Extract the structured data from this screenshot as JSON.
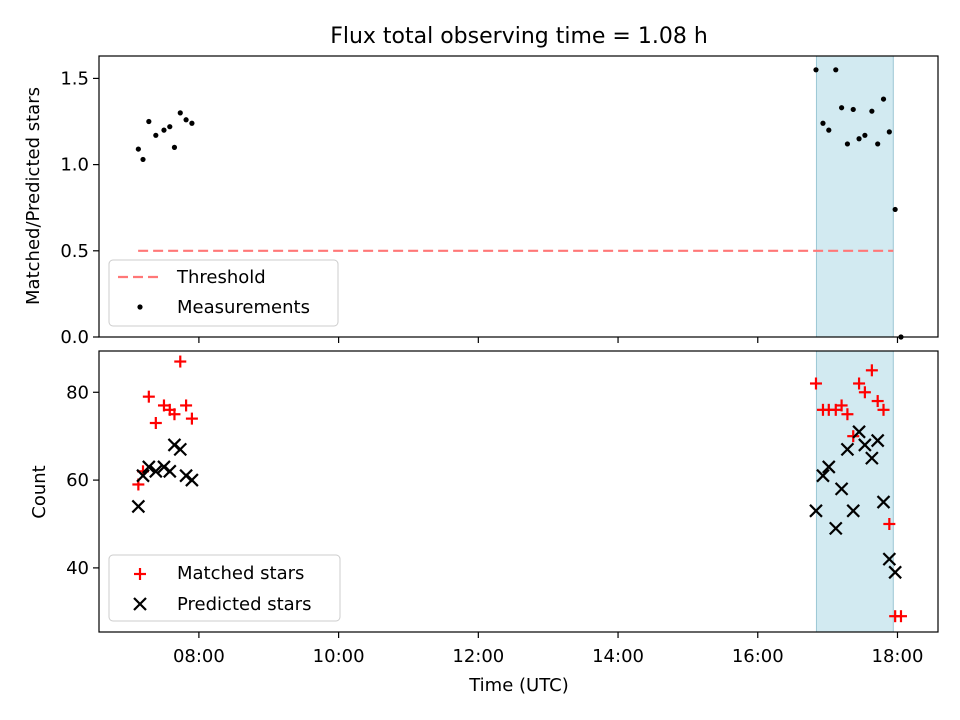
{
  "chart_data": [
    {
      "type": "scatter",
      "title": "Flux total observing time = 1.08 h",
      "xlabel": "",
      "ylabel": "Matched/Predicted stars",
      "xlim": [
        6.57,
        18.58
      ],
      "ylim": [
        0.0,
        1.63
      ],
      "y_ticks": [
        0.0,
        0.5,
        1.0,
        1.5
      ],
      "y_tick_labels": [
        "0.0",
        "0.5",
        "1.0",
        "1.5"
      ],
      "shaded_region": {
        "x_start": 16.84,
        "x_end": 17.94,
        "color": "#add8e6"
      },
      "threshold": {
        "name": "Threshold",
        "y": 0.5,
        "x_start": 7.13,
        "x_end": 17.94,
        "color": "#ff0000"
      },
      "series": [
        {
          "name": "Measurements",
          "marker": "dot",
          "color": "#000000",
          "points": [
            [
              "07:08",
              1.09
            ],
            [
              "07:12",
              1.03
            ],
            [
              "07:17",
              1.25
            ],
            [
              "07:23",
              1.17
            ],
            [
              "07:30",
              1.2
            ],
            [
              "07:35",
              1.22
            ],
            [
              "07:39",
              1.1
            ],
            [
              "07:44",
              1.3
            ],
            [
              "07:49",
              1.26
            ],
            [
              "07:54",
              1.24
            ],
            [
              "16:50",
              1.55
            ],
            [
              "16:56",
              1.24
            ],
            [
              "17:01",
              1.2
            ],
            [
              "17:07",
              1.55
            ],
            [
              "17:12",
              1.33
            ],
            [
              "17:17",
              1.12
            ],
            [
              "17:22",
              1.32
            ],
            [
              "17:27",
              1.15
            ],
            [
              "17:32",
              1.17
            ],
            [
              "17:38",
              1.31
            ],
            [
              "17:43",
              1.12
            ],
            [
              "17:48",
              1.38
            ],
            [
              "17:53",
              1.19
            ],
            [
              "17:58",
              0.74
            ],
            [
              "18:03",
              0.0
            ]
          ]
        }
      ],
      "legend": {
        "position": "lower-left",
        "entries": [
          "Threshold",
          "Measurements"
        ]
      }
    },
    {
      "type": "scatter",
      "title": "",
      "xlabel": "Time (UTC)",
      "ylabel": "Count",
      "xlim": [
        6.57,
        18.58
      ],
      "ylim": [
        25.4,
        89.4
      ],
      "x_ticks": [
        8,
        10,
        12,
        14,
        16,
        18
      ],
      "x_tick_labels": [
        "08:00",
        "10:00",
        "12:00",
        "14:00",
        "16:00",
        "18:00"
      ],
      "y_ticks": [
        40,
        60,
        80
      ],
      "y_tick_labels": [
        "40",
        "60",
        "80"
      ],
      "shaded_region": {
        "x_start": 16.84,
        "x_end": 17.94,
        "color": "#add8e6"
      },
      "series": [
        {
          "name": "Matched stars",
          "marker": "plus",
          "color": "#ff0000",
          "points": [
            [
              "07:08",
              59
            ],
            [
              "07:12",
              62
            ],
            [
              "07:17",
              79
            ],
            [
              "07:23",
              73
            ],
            [
              "07:30",
              77
            ],
            [
              "07:35",
              76
            ],
            [
              "07:39",
              75
            ],
            [
              "07:44",
              87
            ],
            [
              "07:49",
              77
            ],
            [
              "07:54",
              74
            ],
            [
              "16:50",
              82
            ],
            [
              "16:56",
              76
            ],
            [
              "17:01",
              76
            ],
            [
              "17:07",
              76
            ],
            [
              "17:12",
              77
            ],
            [
              "17:17",
              75
            ],
            [
              "17:22",
              70
            ],
            [
              "17:27",
              82
            ],
            [
              "17:32",
              80
            ],
            [
              "17:38",
              85
            ],
            [
              "17:43",
              78
            ],
            [
              "17:48",
              76
            ],
            [
              "17:53",
              50
            ],
            [
              "17:58",
              29
            ],
            [
              "18:03",
              29
            ]
          ]
        },
        {
          "name": "Predicted stars",
          "marker": "x",
          "color": "#000000",
          "points": [
            [
              "07:08",
              54
            ],
            [
              "07:12",
              61
            ],
            [
              "07:17",
              63
            ],
            [
              "07:23",
              62
            ],
            [
              "07:30",
              63
            ],
            [
              "07:35",
              62
            ],
            [
              "07:39",
              68
            ],
            [
              "07:44",
              67
            ],
            [
              "07:49",
              61
            ],
            [
              "07:54",
              60
            ],
            [
              "16:50",
              53
            ],
            [
              "16:56",
              61
            ],
            [
              "17:01",
              63
            ],
            [
              "17:07",
              49
            ],
            [
              "17:12",
              58
            ],
            [
              "17:17",
              67
            ],
            [
              "17:22",
              53
            ],
            [
              "17:27",
              71
            ],
            [
              "17:32",
              68
            ],
            [
              "17:38",
              65
            ],
            [
              "17:43",
              69
            ],
            [
              "17:48",
              55
            ],
            [
              "17:53",
              42
            ],
            [
              "17:58",
              39
            ]
          ]
        }
      ],
      "legend": {
        "position": "lower-left",
        "entries": [
          "Matched stars",
          "Predicted stars"
        ]
      }
    }
  ]
}
